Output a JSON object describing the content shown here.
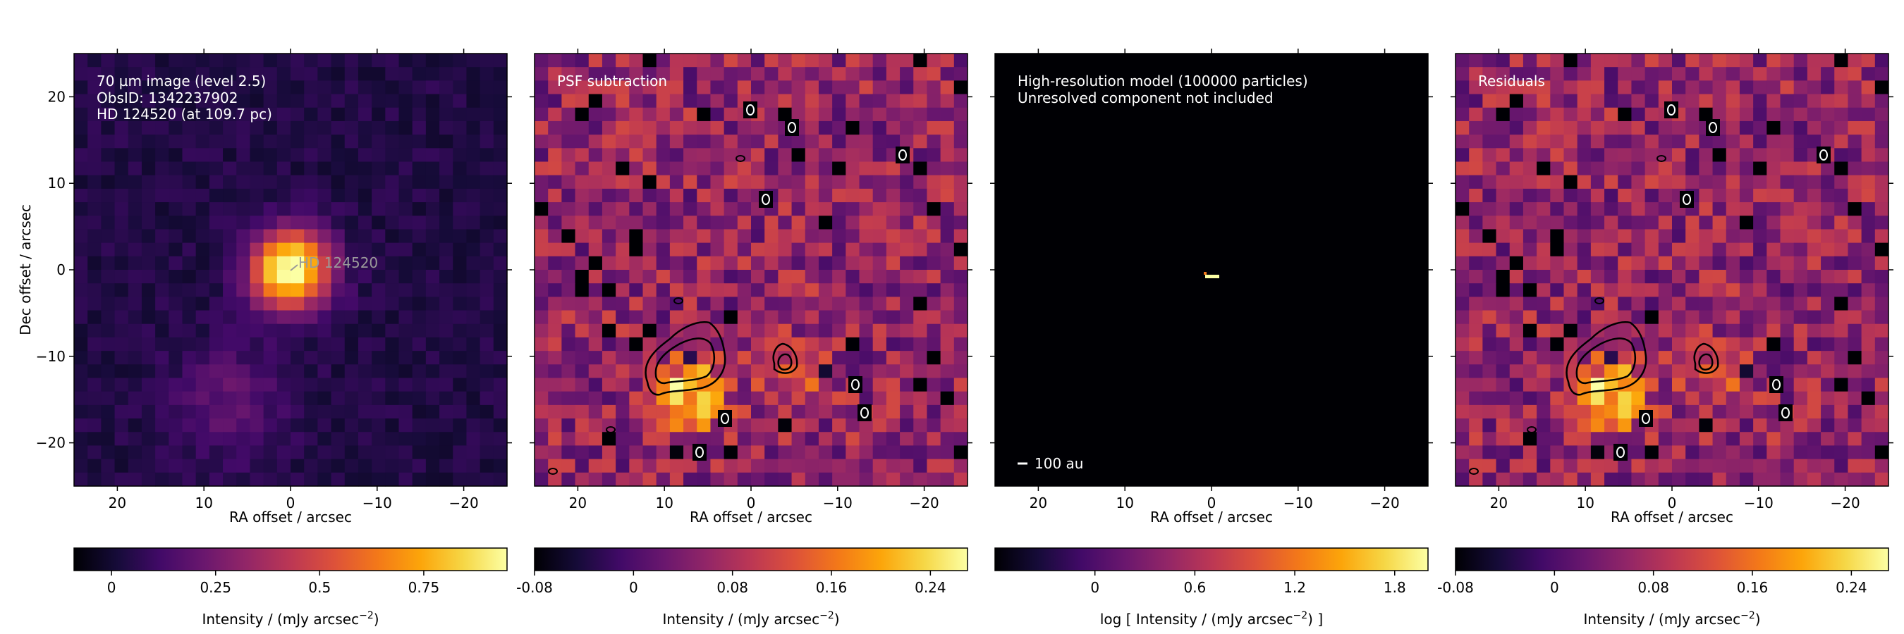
{
  "figure": {
    "panels": [
      {
        "id": "panel-1",
        "overlay_lines": [
          "70 µm image (level 2.5)",
          "ObsID: 1342237902",
          "HD 124520 (at 109.7 pc)"
        ],
        "star_label": "HD 124520",
        "xlabel": "RA offset / arcsec",
        "ylabel": "Dec offset / arcsec",
        "colorbar": {
          "label": "Intensity / (mJy arcsec",
          "label_sup": "−2",
          "label_end": ")",
          "ticks": [
            "0",
            "0.25",
            "0.5",
            "0.75"
          ],
          "range": [
            -0.09,
            0.95
          ]
        }
      },
      {
        "id": "panel-2",
        "overlay_lines": [
          "PSF subtraction"
        ],
        "xlabel": "RA offset / arcsec",
        "colorbar": {
          "label": "Intensity / (mJy arcsec",
          "label_sup": "−2",
          "label_end": ")",
          "ticks": [
            "-0.08",
            "0",
            "0.08",
            "0.16",
            "0.24"
          ],
          "range": [
            -0.08,
            0.27
          ]
        }
      },
      {
        "id": "panel-3",
        "overlay_lines": [
          "High-resolution model (100000 particles)",
          "Unresolved component not included"
        ],
        "scalebar_label": "100 au",
        "xlabel": "RA offset / arcsec",
        "colorbar": {
          "label": "log [ Intensity / (mJy arcsec",
          "label_sup": "−2",
          "label_end": ") ]",
          "ticks": [
            "0",
            "0.6",
            "1.2",
            "1.8"
          ],
          "range": [
            -0.6,
            2.0
          ]
        }
      },
      {
        "id": "panel-4",
        "overlay_lines": [
          "Residuals"
        ],
        "xlabel": "RA offset / arcsec",
        "colorbar": {
          "label": "Intensity / (mJy arcsec",
          "label_sup": "−2",
          "label_end": ")",
          "ticks": [
            "-0.08",
            "0",
            "0.08",
            "0.16",
            "0.24"
          ],
          "range": [
            -0.08,
            0.27
          ]
        }
      }
    ]
  },
  "chart_data": {
    "type": "heatmap",
    "colormap": "inferno",
    "panels": [
      {
        "name": "70 µm image",
        "x_range": [
          25,
          -25
        ],
        "y_range": [
          -25,
          25
        ],
        "xticks": [
          20,
          10,
          0,
          -10,
          -20
        ],
        "yticks": [
          20,
          10,
          0,
          -10,
          -20
        ],
        "features": [
          {
            "kind": "star",
            "ra": 0,
            "dec": 0,
            "peak": 0.95
          },
          {
            "kind": "blob",
            "ra": 7,
            "dec": -15,
            "peak": 0.15
          }
        ]
      },
      {
        "name": "PSF subtraction",
        "x_range": [
          25,
          -25
        ],
        "y_range": [
          -25,
          25
        ],
        "features": [
          {
            "kind": "blob",
            "ra": 7,
            "dec": -14.5,
            "peak": 0.27
          },
          {
            "kind": "blob",
            "ra": -5,
            "dec": -12,
            "peak": 0.1
          }
        ]
      },
      {
        "name": "High-resolution model",
        "x_range": [
          25,
          -25
        ],
        "y_range": [
          -25,
          25
        ],
        "features": [
          {
            "kind": "point",
            "ra": 0,
            "dec": -0.5,
            "peak": 1.9
          }
        ]
      },
      {
        "name": "Residuals",
        "x_range": [
          25,
          -25
        ],
        "y_range": [
          -25,
          25
        ],
        "features": [
          {
            "kind": "blob",
            "ra": 7,
            "dec": -14.5,
            "peak": 0.27
          },
          {
            "kind": "blob",
            "ra": -5,
            "dec": -12,
            "peak": 0.1
          }
        ]
      }
    ]
  }
}
